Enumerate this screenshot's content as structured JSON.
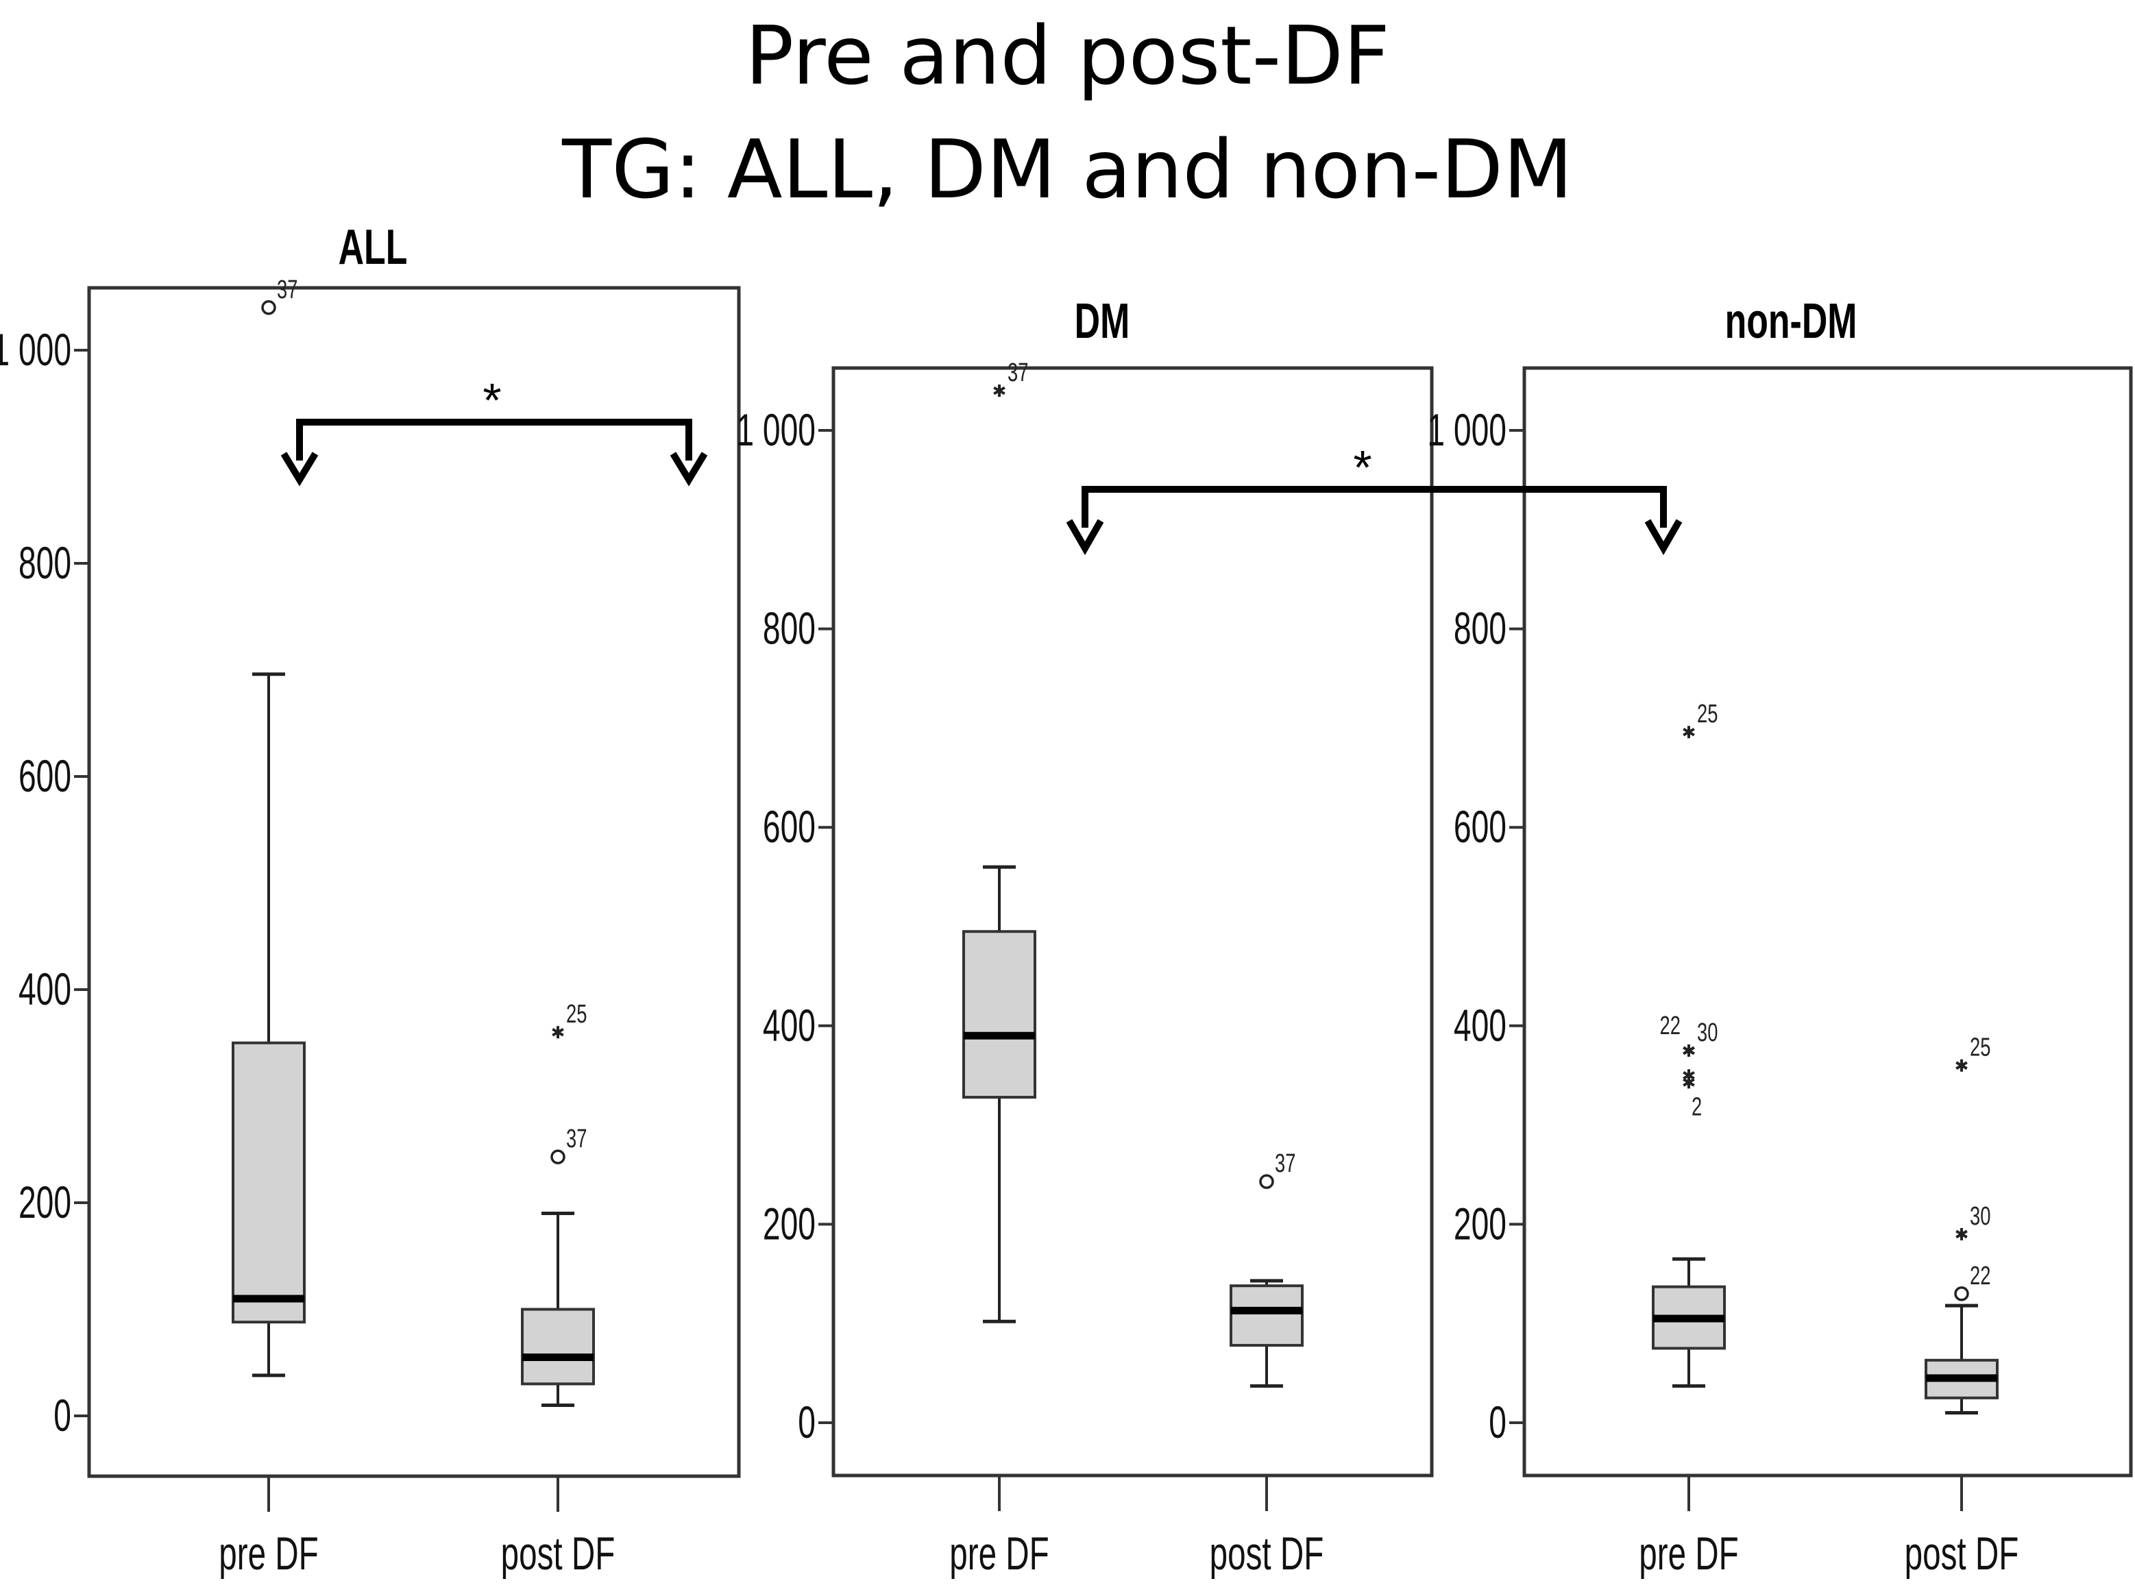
{
  "title": {
    "line1": "Pre and post-DF",
    "line2": "TG: ALL, DM and non-DM"
  },
  "chart_data": [
    {
      "type": "boxplot",
      "title": "ALL",
      "ylim": [
        -55,
        1060
      ],
      "yticks": [
        0,
        200,
        400,
        600,
        800,
        1000
      ],
      "ytick_labels": [
        "0",
        "200",
        "400",
        "600",
        "800",
        "1 000"
      ],
      "categories": [
        "pre DF",
        "post DF"
      ],
      "boxes": [
        {
          "min": 38,
          "q1": 88,
          "median": 110,
          "q3": 350,
          "max": 696,
          "outliers": [
            {
              "value": 1040,
              "marker": "circle",
              "label": "37"
            }
          ]
        },
        {
          "min": 10,
          "q1": 30,
          "median": 55,
          "q3": 100,
          "max": 190,
          "outliers": [
            {
              "value": 360,
              "marker": "star",
              "label": "25"
            },
            {
              "value": 243,
              "marker": "circle",
              "label": "37"
            }
          ]
        }
      ]
    },
    {
      "type": "boxplot",
      "title": "DM",
      "ylim": [
        -55,
        1060
      ],
      "yticks": [
        0,
        200,
        400,
        600,
        800,
        1000
      ],
      "ytick_labels": [
        "0",
        "200",
        "400",
        "600",
        "800",
        "1 000"
      ],
      "categories": [
        "pre DF",
        "post DF"
      ],
      "boxes": [
        {
          "min": 102,
          "q1": 328,
          "median": 390,
          "q3": 495,
          "max": 560,
          "outliers": [
            {
              "value": 1040,
              "marker": "star",
              "label": "37"
            }
          ]
        },
        {
          "min": 37,
          "q1": 78,
          "median": 113,
          "q3": 138,
          "max": 143,
          "outliers": [
            {
              "value": 243,
              "marker": "circle",
              "label": "37"
            }
          ]
        }
      ]
    },
    {
      "type": "boxplot",
      "title": "non-DM",
      "ylim": [
        -55,
        1060
      ],
      "yticks": [
        0,
        200,
        400,
        600,
        800,
        1000
      ],
      "ytick_labels": [
        "0",
        "200",
        "400",
        "600",
        "800",
        "1 000"
      ],
      "categories": [
        "pre DF",
        "post DF"
      ],
      "boxes": [
        {
          "min": 37,
          "q1": 75,
          "median": 105,
          "q3": 137,
          "max": 165,
          "outliers": [
            {
              "value": 696,
              "marker": "star",
              "label": "25"
            },
            {
              "value": 375,
              "marker": "star",
              "label": "30"
            },
            {
              "value": 375,
              "marker": "star",
              "label": "22"
            },
            {
              "value": 350,
              "marker": "star",
              "label": ""
            },
            {
              "value": 343,
              "marker": "star",
              "label": "2"
            }
          ]
        },
        {
          "min": 10,
          "q1": 25,
          "median": 45,
          "q3": 63,
          "max": 118,
          "outliers": [
            {
              "value": 360,
              "marker": "star",
              "label": "25"
            },
            {
              "value": 190,
              "marker": "star",
              "label": "30"
            },
            {
              "value": 130,
              "marker": "circle",
              "label": "22"
            }
          ]
        }
      ]
    }
  ],
  "annotations": [
    {
      "symbol": "*",
      "from": "ALL pre DF",
      "to": "ALL post DF"
    },
    {
      "symbol": "*",
      "from": "DM pre DF",
      "to": "non-DM pre DF"
    }
  ]
}
